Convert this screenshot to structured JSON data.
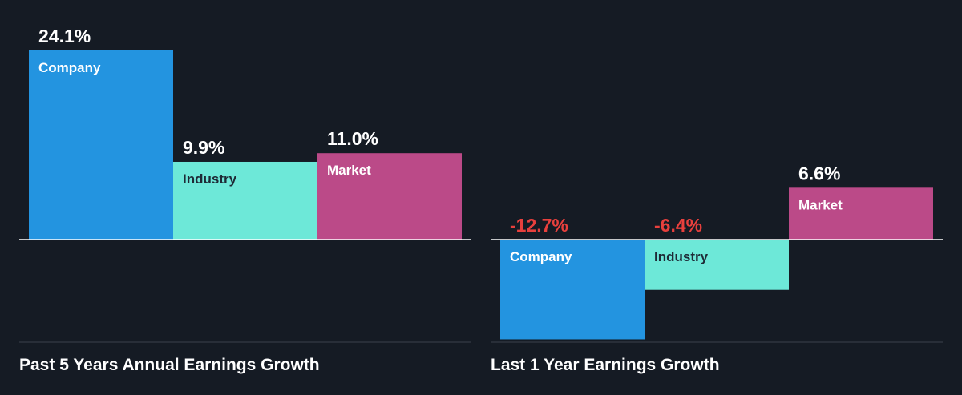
{
  "colors": {
    "background": "#151b24",
    "company": "#2394e0",
    "industry": "#6de8d8",
    "market": "#bb4a88",
    "positive_label": "#ffffff",
    "negative_label": "#e8403d",
    "axis": "#ffffff",
    "baseline": "#3a414d"
  },
  "chart_data": [
    {
      "type": "bar",
      "title": "Past 5 Years Annual Earnings Growth",
      "categories": [
        "Company",
        "Industry",
        "Market"
      ],
      "values": [
        24.1,
        9.9,
        11.0
      ],
      "value_labels": [
        "24.1%",
        "9.9%",
        "11.0%"
      ],
      "unit": "%",
      "grid": false
    },
    {
      "type": "bar",
      "title": "Last 1 Year Earnings Growth",
      "categories": [
        "Company",
        "Industry",
        "Market"
      ],
      "values": [
        -12.7,
        -6.4,
        6.6
      ],
      "value_labels": [
        "-12.7%",
        "-6.4%",
        "6.6%"
      ],
      "unit": "%",
      "grid": false
    }
  ]
}
